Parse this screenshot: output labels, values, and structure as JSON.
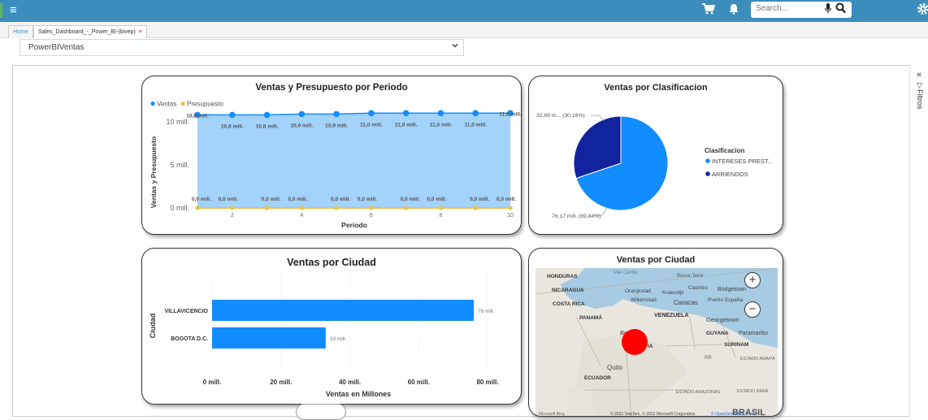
{
  "topbar": {
    "menu_icon": "hamburger-icon",
    "search_placeholder": "Search...",
    "colors": {
      "bar": "#3c8dbc"
    }
  },
  "tabs": [
    {
      "label": "Home"
    },
    {
      "label": "Sales_Dashboard_-_Power_BI-(bivep)",
      "close": "×"
    }
  ],
  "selector": {
    "value": "PowerBIVentas"
  },
  "filters_pane": {
    "label": "Filtros"
  },
  "chart_data": [
    {
      "type": "area",
      "title": "Ventas y Presupuesto por Periodo",
      "xlabel": "Periodo",
      "ylabel": "Ventas y Presupuesto",
      "legend": [
        "Ventas",
        "Presupuesto"
      ],
      "x": [
        1,
        2,
        3,
        4,
        5,
        6,
        7,
        8,
        9,
        10
      ],
      "x_ticks": [
        "2",
        "4",
        "6",
        "8",
        "10"
      ],
      "y_ticks": [
        "0 mill.",
        "5 mill.",
        "10 mill."
      ],
      "ylim": [
        0,
        11.5
      ],
      "series": [
        {
          "name": "Ventas",
          "color": "#118dff",
          "values": [
            10.8,
            10.8,
            10.8,
            10.9,
            10.9,
            11.0,
            11.0,
            11.0,
            11.0,
            11.0
          ],
          "labels": [
            "10,8 mill.",
            "10,8 mill.",
            "10,8 mill.",
            "10,9 mill.",
            "10,9 mill.",
            "11,0 mill.",
            "11,0 mill.",
            "11,0 mill.",
            "11,0 mill.",
            "11,0 mill."
          ]
        },
        {
          "name": "Presupuesto",
          "color": "#e8c547",
          "values": [
            0,
            0,
            0,
            0,
            0,
            0,
            0,
            0,
            0,
            0
          ],
          "labels": [
            "0,0 mill.",
            "0,0 mill.",
            "0,0 mill.",
            "0,0 mill.",
            "0,0 mill.",
            "0,0 mill.",
            "0,0 mill.",
            "0,0 mill.",
            "0,0 mill.",
            "0,0 mill."
          ]
        }
      ]
    },
    {
      "type": "pie",
      "title": "Ventas por Clasificacion",
      "legend_title": "Clasificacion",
      "slices": [
        {
          "name": "INTERESES PREST...",
          "value": 69.84,
          "label": "76,17 mill. (69,84%)",
          "color": "#118dff"
        },
        {
          "name": "ARRIENDOS",
          "value": 30.16,
          "label": "32,89 m... (30,16%)",
          "color": "#12239e"
        }
      ]
    },
    {
      "type": "bar",
      "title": "Ventas por Ciudad",
      "xlabel": "Ventas en Millones",
      "ylabel": "Ciudad",
      "categories": [
        "VILLAVICENCIO",
        "BOGOTA D.C."
      ],
      "values": [
        76,
        33
      ],
      "value_labels": [
        "76 mill.",
        "33 mill."
      ],
      "x_ticks": [
        "0 mill.",
        "20 mill.",
        "40 mill.",
        "60 mill.",
        "80 mill."
      ],
      "xlim": [
        0,
        80
      ],
      "color": "#118dff"
    }
  ],
  "map": {
    "title": "Ventas por Ciudad",
    "labels": [
      "HONDURAS",
      "Mar Caribe",
      "Basse-Terre",
      "NICARAGUA",
      "Oranjestad",
      "Kralendijk",
      "Castries",
      "Bridgetown",
      "Willemstad",
      "Caracas",
      "Puerto España",
      "COSTA RICA",
      "VENEZUELA",
      "PANAMÁ",
      "Georgetown",
      "GUYANA",
      "Paramaribo",
      "SURINAM",
      "Bo",
      "IA",
      "Quito",
      "ECUADOR",
      "ESTADO AMAPÁ",
      "ESTADO PARÁ",
      "ESTADO AMAZONAS",
      "BRASIL",
      "RR"
    ],
    "footer": "© 2022 TomTom, © 2022 Microsoft Corporation",
    "footer_link": "© OpenStreetMap Terms",
    "brand": "Microsoft Bing",
    "zoom_in": "+",
    "zoom_out": "−"
  }
}
